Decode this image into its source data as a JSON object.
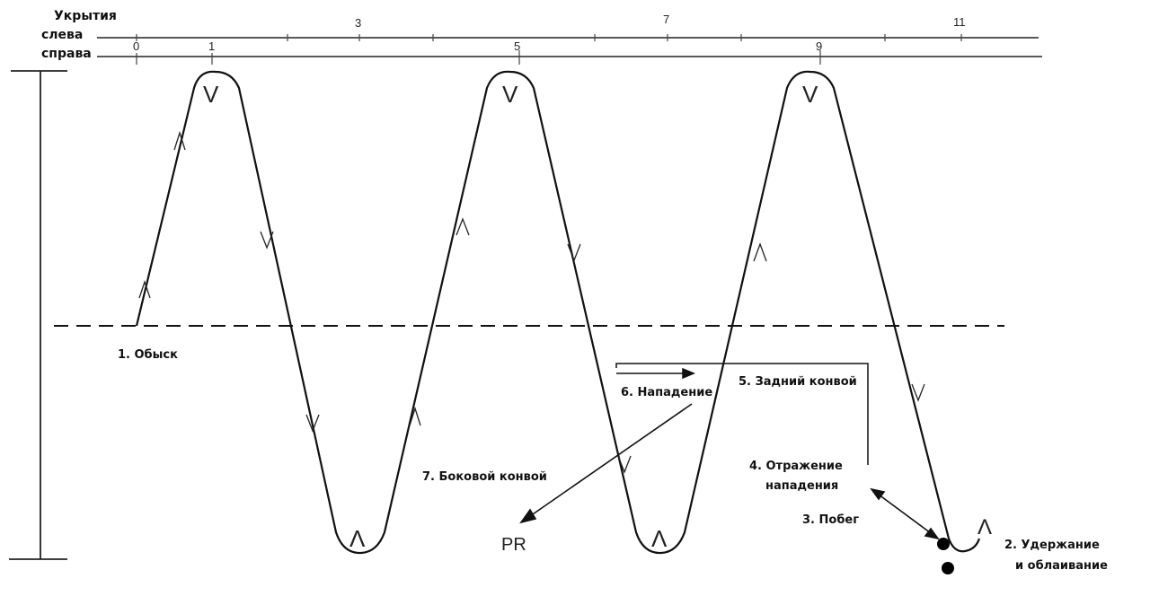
{
  "header": {
    "covers": "Укрытия",
    "left": "слева",
    "right": "справа"
  },
  "ticks_top": [
    "3",
    "7",
    "11"
  ],
  "ticks_left_row": [
    "0",
    "1",
    "5",
    "9"
  ],
  "labels": {
    "search": "1. Обыск",
    "hold": "2. Удержание",
    "hold2": "и облаивание",
    "escape": "3. Побег",
    "repel": "4. Отражение",
    "repel2": "нападения",
    "rear": "5. Задний конвой",
    "attack": "6. Нападение",
    "side": "7. Боковой конвой",
    "pr": "PR"
  },
  "turn_marks": {
    "top": "V",
    "bottom": "Λ"
  }
}
